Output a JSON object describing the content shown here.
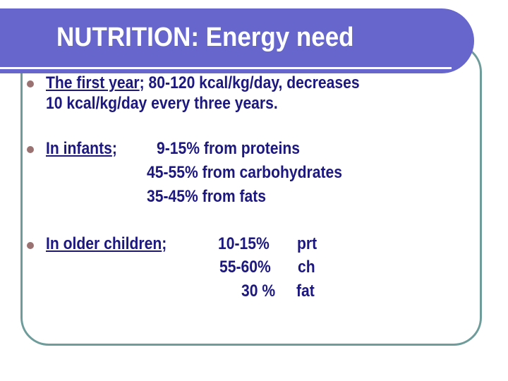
{
  "title": "NUTRITION: Energy need",
  "bullets": [
    {
      "underlined": "The first year",
      "rest": "; 80-120 kcal/kg/day, decreases",
      "continuation": "10 kcal/kg/day every three years."
    },
    {
      "underlined": "In infants",
      "rest": ";",
      "lines": [
        "9-15% from proteins",
        "45-55% from carbohydrates",
        "35-45% from fats"
      ]
    },
    {
      "underlined": "In older children",
      "rest": ";",
      "lines": [
        {
          "pct": "10-15%",
          "label": "prt"
        },
        {
          "pct": "55-60%",
          "label": "ch"
        },
        {
          "pct": "30 %",
          "label": "fat"
        }
      ]
    }
  ],
  "colors": {
    "banner": "#6666cc",
    "text": "#1c1880",
    "border": "#6e9c9a",
    "bullet": "#9a7272"
  }
}
